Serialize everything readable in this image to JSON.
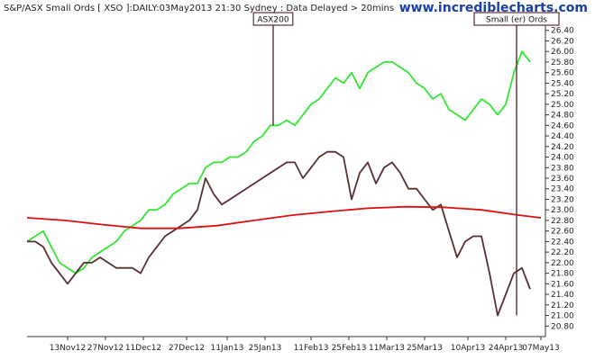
{
  "chart_data": {
    "type": "line",
    "title": "S&P/ASX Small Ords [ XSO ]:DAILY:03May2013 21:30 Sydney : Data Delayed > 20mins",
    "brand": "www.incrediblecharts.com",
    "ylim": [
      20.6,
      26.6
    ],
    "y_ticks": [
      "20.80",
      "21.00",
      "21.20",
      "21.40",
      "21.60",
      "21.80",
      "22.00",
      "22.20",
      "22.40",
      "22.60",
      "22.80",
      "23.00",
      "23.20",
      "23.40",
      "23.60",
      "23.80",
      "24.00",
      "24.20",
      "24.40",
      "24.60",
      "24.80",
      "25.00",
      "25.20",
      "25.40",
      "25.60",
      "25.80",
      "26.00",
      "26.20",
      "26.40"
    ],
    "xlim": [
      "2012-10-29",
      "2013-05-07"
    ],
    "x_ticks": [
      {
        "date": "2012-11-13",
        "label": "13Nov12"
      },
      {
        "date": "2012-11-27",
        "label": "27Nov12"
      },
      {
        "date": "2012-12-11",
        "label": "11Dec12"
      },
      {
        "date": "2012-12-27",
        "label": "27Dec12"
      },
      {
        "date": "2013-01-11",
        "label": "11Jan13"
      },
      {
        "date": "2013-01-25",
        "label": "25Jan13"
      },
      {
        "date": "2013-02-11",
        "label": "11Feb13"
      },
      {
        "date": "2013-02-25",
        "label": "25Feb13"
      },
      {
        "date": "2013-03-11",
        "label": "11Mar13"
      },
      {
        "date": "2013-03-25",
        "label": "25Mar13"
      },
      {
        "date": "2013-04-10",
        "label": "10Apr13"
      },
      {
        "date": "2013-04-24",
        "label": "24Apr13"
      },
      {
        "date": "2013-05-07",
        "label": "07May13"
      }
    ],
    "series": [
      {
        "color": "#33e633",
        "points": [
          [
            "2012-10-29",
            22.4
          ],
          [
            "2012-11-01",
            22.5
          ],
          [
            "2012-11-04",
            22.6
          ],
          [
            "2012-11-07",
            22.3
          ],
          [
            "2012-11-10",
            22.0
          ],
          [
            "2012-11-13",
            21.9
          ],
          [
            "2012-11-16",
            21.8
          ],
          [
            "2012-11-19",
            21.9
          ],
          [
            "2012-11-22",
            22.1
          ],
          [
            "2012-11-25",
            22.2
          ],
          [
            "2012-11-28",
            22.3
          ],
          [
            "2012-12-01",
            22.4
          ],
          [
            "2012-12-04",
            22.6
          ],
          [
            "2012-12-07",
            22.7
          ],
          [
            "2012-12-10",
            22.8
          ],
          [
            "2012-12-13",
            23.0
          ],
          [
            "2012-12-16",
            23.0
          ],
          [
            "2012-12-19",
            23.1
          ],
          [
            "2012-12-22",
            23.3
          ],
          [
            "2012-12-25",
            23.4
          ],
          [
            "2012-12-28",
            23.5
          ],
          [
            "2012-12-31",
            23.5
          ],
          [
            "2013-01-03",
            23.8
          ],
          [
            "2013-01-06",
            23.9
          ],
          [
            "2013-01-09",
            23.9
          ],
          [
            "2013-01-12",
            24.0
          ],
          [
            "2013-01-15",
            24.0
          ],
          [
            "2013-01-18",
            24.1
          ],
          [
            "2013-01-21",
            24.3
          ],
          [
            "2013-01-24",
            24.4
          ],
          [
            "2013-01-27",
            24.6
          ],
          [
            "2013-01-30",
            24.6
          ],
          [
            "2013-02-02",
            24.7
          ],
          [
            "2013-02-05",
            24.6
          ],
          [
            "2013-02-08",
            24.8
          ],
          [
            "2013-02-11",
            25.0
          ],
          [
            "2013-02-14",
            25.1
          ],
          [
            "2013-02-17",
            25.3
          ],
          [
            "2013-02-20",
            25.5
          ],
          [
            "2013-02-23",
            25.4
          ],
          [
            "2013-02-26",
            25.6
          ],
          [
            "2013-03-01",
            25.3
          ],
          [
            "2013-03-04",
            25.6
          ],
          [
            "2013-03-07",
            25.7
          ],
          [
            "2013-03-10",
            25.8
          ],
          [
            "2013-03-13",
            25.8
          ],
          [
            "2013-03-16",
            25.7
          ],
          [
            "2013-03-19",
            25.6
          ],
          [
            "2013-03-22",
            25.4
          ],
          [
            "2013-03-25",
            25.3
          ],
          [
            "2013-03-28",
            25.1
          ],
          [
            "2013-03-31",
            25.2
          ],
          [
            "2013-04-03",
            24.9
          ],
          [
            "2013-04-06",
            24.8
          ],
          [
            "2013-04-09",
            24.7
          ],
          [
            "2013-04-12",
            24.9
          ],
          [
            "2013-04-15",
            25.1
          ],
          [
            "2013-04-18",
            25.0
          ],
          [
            "2013-04-21",
            24.8
          ],
          [
            "2013-04-24",
            25.0
          ],
          [
            "2013-04-27",
            25.6
          ],
          [
            "2013-04-30",
            26.0
          ],
          [
            "2013-05-03",
            25.8
          ]
        ]
      },
      {
        "color": "#5a2e2e",
        "points": [
          [
            "2012-10-29",
            22.4
          ],
          [
            "2012-11-01",
            22.4
          ],
          [
            "2012-11-04",
            22.3
          ],
          [
            "2012-11-07",
            22.0
          ],
          [
            "2012-11-10",
            21.8
          ],
          [
            "2012-11-13",
            21.6
          ],
          [
            "2012-11-16",
            21.8
          ],
          [
            "2012-11-19",
            22.0
          ],
          [
            "2012-11-22",
            22.0
          ],
          [
            "2012-11-25",
            22.1
          ],
          [
            "2012-11-28",
            22.0
          ],
          [
            "2012-12-01",
            21.9
          ],
          [
            "2012-12-04",
            21.9
          ],
          [
            "2012-12-07",
            21.9
          ],
          [
            "2012-12-10",
            21.8
          ],
          [
            "2012-12-13",
            22.1
          ],
          [
            "2012-12-16",
            22.3
          ],
          [
            "2012-12-19",
            22.5
          ],
          [
            "2012-12-22",
            22.6
          ],
          [
            "2012-12-25",
            22.7
          ],
          [
            "2012-12-28",
            22.8
          ],
          [
            "2012-12-31",
            23.0
          ],
          [
            "2013-01-03",
            23.6
          ],
          [
            "2013-01-06",
            23.3
          ],
          [
            "2013-01-09",
            23.1
          ],
          [
            "2013-01-12",
            23.2
          ],
          [
            "2013-01-15",
            23.3
          ],
          [
            "2013-01-18",
            23.4
          ],
          [
            "2013-01-21",
            23.5
          ],
          [
            "2013-01-24",
            23.6
          ],
          [
            "2013-01-27",
            23.7
          ],
          [
            "2013-01-30",
            23.8
          ],
          [
            "2013-02-02",
            23.9
          ],
          [
            "2013-02-05",
            23.9
          ],
          [
            "2013-02-08",
            23.6
          ],
          [
            "2013-02-11",
            23.8
          ],
          [
            "2013-02-14",
            24.0
          ],
          [
            "2013-02-17",
            24.1
          ],
          [
            "2013-02-20",
            24.1
          ],
          [
            "2013-02-23",
            24.0
          ],
          [
            "2013-02-26",
            23.2
          ],
          [
            "2013-03-01",
            23.7
          ],
          [
            "2013-03-04",
            23.9
          ],
          [
            "2013-03-07",
            23.5
          ],
          [
            "2013-03-10",
            23.8
          ],
          [
            "2013-03-13",
            23.9
          ],
          [
            "2013-03-16",
            23.7
          ],
          [
            "2013-03-19",
            23.4
          ],
          [
            "2013-03-22",
            23.4
          ],
          [
            "2013-03-25",
            23.2
          ],
          [
            "2013-03-28",
            23.0
          ],
          [
            "2013-03-31",
            23.1
          ],
          [
            "2013-04-03",
            22.6
          ],
          [
            "2013-04-06",
            22.1
          ],
          [
            "2013-04-09",
            22.4
          ],
          [
            "2013-04-12",
            22.5
          ],
          [
            "2013-04-15",
            22.5
          ],
          [
            "2013-04-18",
            21.8
          ],
          [
            "2013-04-21",
            21.0
          ],
          [
            "2013-04-24",
            21.4
          ],
          [
            "2013-04-27",
            21.8
          ],
          [
            "2013-04-30",
            21.9
          ],
          [
            "2013-05-03",
            21.5
          ]
        ]
      },
      {
        "color": "#dd1111",
        "points": [
          [
            "2012-10-29",
            22.85
          ],
          [
            "2012-11-12",
            22.8
          ],
          [
            "2012-11-26",
            22.72
          ],
          [
            "2012-12-10",
            22.65
          ],
          [
            "2012-12-24",
            22.65
          ],
          [
            "2013-01-07",
            22.7
          ],
          [
            "2013-01-21",
            22.8
          ],
          [
            "2013-02-04",
            22.9
          ],
          [
            "2013-02-18",
            22.97
          ],
          [
            "2013-03-04",
            23.03
          ],
          [
            "2013-03-18",
            23.06
          ],
          [
            "2013-04-01",
            23.05
          ],
          [
            "2013-04-15",
            23.0
          ],
          [
            "2013-04-29",
            22.9
          ],
          [
            "2013-05-07",
            22.85
          ]
        ]
      }
    ],
    "annotations": [
      {
        "label": "ASX200",
        "date": "2013-01-28",
        "value": 24.6
      },
      {
        "label": "Small (er) Ords",
        "date": "2013-04-28",
        "value": 21.0
      }
    ],
    "grid": false
  }
}
